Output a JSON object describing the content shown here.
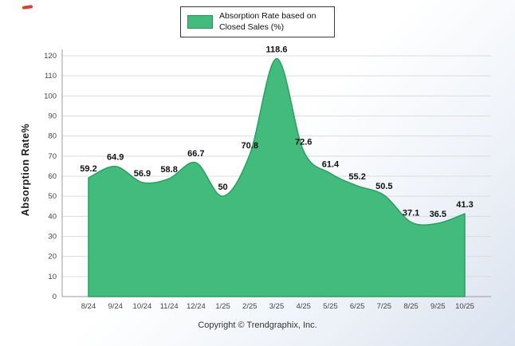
{
  "legend": {
    "label": "Absorption Rate based on Closed Sales (%)"
  },
  "footer": {
    "copyright": "Copyright © Trendgraphix, Inc."
  },
  "chart_data": {
    "type": "area",
    "categories": [
      "8/24",
      "9/24",
      "10/24",
      "11/24",
      "12/24",
      "1/25",
      "2/25",
      "3/25",
      "4/25",
      "5/25",
      "6/25",
      "7/25",
      "8/25",
      "9/25",
      "10/25"
    ],
    "series": [
      {
        "name": "Absorption Rate based on Closed Sales (%)",
        "values": [
          59.2,
          64.9,
          56.9,
          58.8,
          66.7,
          50,
          70.8,
          118.6,
          72.6,
          61.4,
          55.2,
          50.5,
          37.1,
          36.5,
          41.3
        ]
      }
    ],
    "title": "",
    "xlabel": "",
    "ylabel": "Absorption Rate%",
    "ylim": [
      0,
      120
    ],
    "ytick_step": 10,
    "grid": true,
    "legend_position": "top",
    "colors": {
      "area_fill": "#42bb7d",
      "area_stroke": "#2aa05f",
      "label_color": "#111111",
      "grid_color": "#dcdcdc",
      "axis_color": "#9b9b9b",
      "tick_color": "#444444"
    }
  }
}
